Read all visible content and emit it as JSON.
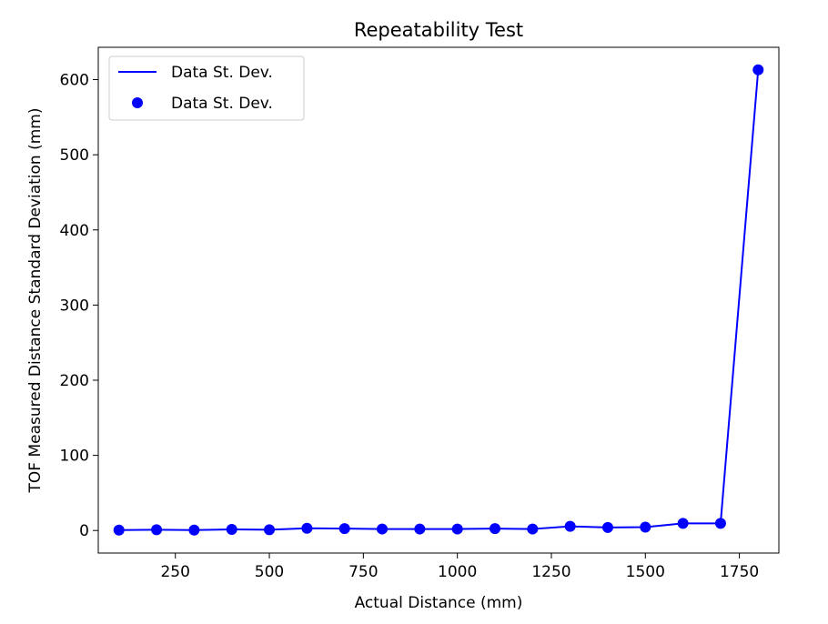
{
  "chart_data": {
    "type": "line",
    "title": "Repeatability Test",
    "xlabel": "Actual Distance (mm)",
    "ylabel": "TOF Measured Distance Standard Deviation (mm)",
    "xlim": [
      45,
      1855
    ],
    "ylim": [
      -30,
      643
    ],
    "xticks": [
      250,
      500,
      750,
      1000,
      1250,
      1500,
      1750
    ],
    "yticks": [
      0,
      100,
      200,
      300,
      400,
      500,
      600
    ],
    "grid": false,
    "legend_position": "top-left",
    "x": [
      100,
      200,
      300,
      400,
      500,
      600,
      700,
      800,
      900,
      1000,
      1100,
      1200,
      1300,
      1400,
      1500,
      1600,
      1700,
      1800
    ],
    "series": [
      {
        "name": "Data St. Dev.",
        "style": "line",
        "color": "#0000ff",
        "values": [
          0.5,
          1.0,
          0.5,
          1.5,
          1.0,
          3.0,
          2.5,
          2.0,
          2.0,
          2.0,
          2.5,
          2.0,
          5.5,
          4.0,
          4.5,
          9.5,
          9.5,
          613
        ]
      },
      {
        "name": "Data St. Dev.",
        "style": "markers",
        "color": "#0000ff",
        "values": [
          0.5,
          1.0,
          0.5,
          1.5,
          1.0,
          3.0,
          2.5,
          2.0,
          2.0,
          2.0,
          2.5,
          2.0,
          5.5,
          4.0,
          4.5,
          9.5,
          9.5,
          613
        ]
      }
    ]
  }
}
